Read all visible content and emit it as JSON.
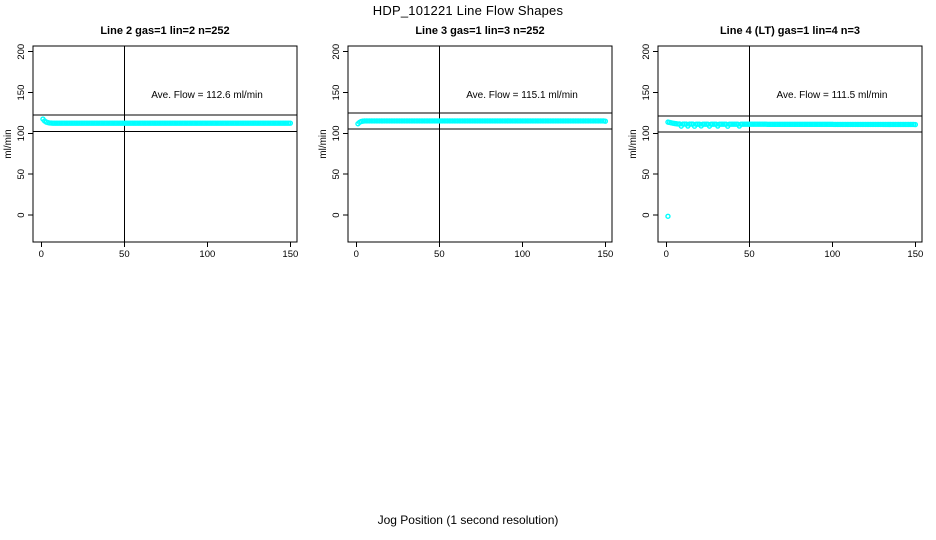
{
  "figure": {
    "suptitle": "HDP_101221  Line Flow Shapes",
    "shared_xlabel": "Jog Position (1 second resolution)",
    "background_color": "#FFFFFF",
    "axis_color": "#000000",
    "point_color": "#00FFFF"
  },
  "chart_data": [
    {
      "type": "scatter",
      "title": "Line 2 gas=1 lin=2 n=252",
      "annotation": "Ave. Flow =  112.6  ml/min",
      "ave_flow_ml_min": 112.6,
      "ylabel": "ml/min",
      "xlim": [
        -5,
        154
      ],
      "ylim": [
        -33,
        207
      ],
      "xticks": [
        0,
        50,
        100,
        150
      ],
      "yticks": [
        0,
        50,
        100,
        150,
        200
      ],
      "vline_x": 50,
      "hlines": [
        102.6,
        122.6
      ],
      "x_start": 1,
      "y_values": [
        117.5,
        115.2,
        113.9,
        113.2,
        112.8,
        112.6,
        112.5,
        112.5,
        112.5,
        112.5,
        112.5,
        112.5,
        112.5,
        112.5,
        112.5,
        112.5,
        112.5,
        112.5,
        112.5,
        112.5,
        112.5,
        112.5,
        112.5,
        112.5,
        112.5,
        112.5,
        112.5,
        112.5,
        112.5,
        112.5,
        112.5,
        112.5,
        112.5,
        112.5,
        112.5,
        112.5,
        112.5,
        112.5,
        112.5,
        112.5,
        112.5,
        112.5,
        112.5,
        112.5,
        112.5,
        112.5,
        112.5,
        112.5,
        112.5,
        112.5,
        112.5,
        112.5,
        112.5,
        112.5,
        112.5,
        112.5,
        112.5,
        112.5,
        112.5,
        112.5,
        112.5,
        112.5,
        112.5,
        112.5,
        112.5,
        112.5,
        112.5,
        112.5,
        112.5,
        112.5,
        112.5,
        112.5,
        112.5,
        112.5,
        112.5,
        112.5,
        112.5,
        112.5,
        112.5,
        112.5,
        112.5,
        112.5,
        112.5,
        112.5,
        112.5,
        112.5,
        112.5,
        112.5,
        112.5,
        112.5,
        112.5,
        112.5,
        112.5,
        112.5,
        112.5,
        112.5,
        112.5,
        112.5,
        112.5,
        112.5,
        112.5,
        112.5,
        112.5,
        112.5,
        112.5,
        112.5,
        112.5,
        112.5,
        112.5,
        112.5,
        112.5,
        112.5,
        112.5,
        112.5,
        112.5,
        112.5,
        112.5,
        112.5,
        112.5,
        112.5,
        112.5,
        112.5,
        112.5,
        112.5,
        112.5,
        112.5,
        112.5,
        112.5,
        112.5,
        112.5,
        112.5,
        112.5,
        112.5,
        112.5,
        112.5,
        112.5,
        112.5,
        112.5,
        112.5,
        112.5,
        112.5,
        112.5,
        112.5,
        112.5,
        112.5,
        112.5,
        112.5,
        112.5,
        112.5,
        112.5
      ],
      "extra_points": []
    },
    {
      "type": "scatter",
      "title": "Line 3 gas=1 lin=3 n=252",
      "annotation": "Ave. Flow =  115.1  ml/min",
      "ave_flow_ml_min": 115.1,
      "ylabel": "ml/min",
      "xlim": [
        -5,
        154
      ],
      "ylim": [
        -33,
        207
      ],
      "xticks": [
        0,
        50,
        100,
        150
      ],
      "yticks": [
        0,
        50,
        100,
        150,
        200
      ],
      "vline_x": 50,
      "hlines": [
        105.1,
        125.1
      ],
      "x_start": 1,
      "y_values": [
        111.8,
        113.6,
        114.6,
        115.0,
        115.2,
        115.3,
        115.3,
        115.3,
        115.3,
        115.3,
        115.3,
        115.3,
        115.3,
        115.3,
        115.3,
        115.3,
        115.3,
        115.3,
        115.3,
        115.3,
        115.3,
        115.3,
        115.3,
        115.3,
        115.3,
        115.3,
        115.3,
        115.3,
        115.3,
        115.3,
        115.3,
        115.3,
        115.3,
        115.3,
        115.3,
        115.3,
        115.3,
        115.3,
        115.3,
        115.3,
        115.3,
        115.3,
        115.3,
        115.3,
        115.3,
        115.3,
        115.3,
        115.3,
        115.3,
        115.3,
        115.3,
        115.3,
        115.3,
        115.3,
        115.3,
        115.3,
        115.3,
        115.3,
        115.3,
        115.3,
        115.3,
        115.3,
        115.3,
        115.3,
        115.3,
        115.3,
        115.3,
        115.3,
        115.3,
        115.3,
        115.3,
        115.3,
        115.3,
        115.3,
        115.3,
        115.3,
        115.3,
        115.3,
        115.3,
        115.3,
        115.3,
        115.3,
        115.3,
        115.3,
        115.3,
        115.3,
        115.3,
        115.3,
        115.3,
        115.3,
        115.3,
        115.3,
        115.3,
        115.3,
        115.3,
        115.3,
        115.3,
        115.3,
        115.3,
        115.3,
        115.3,
        115.3,
        115.3,
        115.3,
        115.3,
        115.3,
        115.3,
        115.3,
        115.3,
        115.3,
        115.3,
        115.3,
        115.3,
        115.3,
        115.3,
        115.3,
        115.3,
        115.3,
        115.3,
        115.3,
        115.3,
        115.3,
        115.3,
        115.3,
        115.3,
        115.3,
        115.3,
        115.3,
        115.3,
        115.3,
        115.3,
        115.3,
        115.3,
        115.3,
        115.3,
        115.3,
        115.3,
        115.3,
        115.3,
        115.3,
        115.3,
        115.3,
        115.3,
        115.3,
        115.3,
        115.3,
        115.3,
        115.3,
        115.3,
        114.9
      ],
      "extra_points": []
    },
    {
      "type": "scatter",
      "title": "Line 4 (LT) gas=1 lin=4 n=3",
      "annotation": "Ave. Flow =  111.5  ml/min",
      "ave_flow_ml_min": 111.5,
      "ylabel": "ml/min",
      "xlim": [
        -5,
        154
      ],
      "ylim": [
        -33,
        207
      ],
      "xticks": [
        0,
        50,
        100,
        150
      ],
      "yticks": [
        0,
        50,
        100,
        150,
        200
      ],
      "vline_x": 50,
      "hlines": [
        101.5,
        121.5
      ],
      "x_start": 1,
      "y_values": [
        113.8,
        113.4,
        112.9,
        112.5,
        112.1,
        111.8,
        111.6,
        111.5,
        108.9,
        111.4,
        111.4,
        111.4,
        109.0,
        111.4,
        111.4,
        111.4,
        108.8,
        111.3,
        111.3,
        111.3,
        109.1,
        111.3,
        111.3,
        111.3,
        111.3,
        108.9,
        111.3,
        111.3,
        111.3,
        111.3,
        109.0,
        111.2,
        111.2,
        111.2,
        111.2,
        111.2,
        108.8,
        111.2,
        111.2,
        111.2,
        111.2,
        111.2,
        111.2,
        109.0,
        111.2,
        111.2,
        111.2,
        111.2,
        111.2,
        111.2,
        111.2,
        111.2,
        111.2,
        111.2,
        111.2,
        111.2,
        111.2,
        111.2,
        111.2,
        111.2,
        111.1,
        111.1,
        111.1,
        111.1,
        111.1,
        111.1,
        111.1,
        111.1,
        111.1,
        111.1,
        111.1,
        111.1,
        111.1,
        111.1,
        111.1,
        111.1,
        111.1,
        111.1,
        111.1,
        111.1,
        111.1,
        111.1,
        111.1,
        111.1,
        111.1,
        111.1,
        111.1,
        111.1,
        111.1,
        111.1,
        111.1,
        111.1,
        111.1,
        111.1,
        111.1,
        111.1,
        111.1,
        111.1,
        111.1,
        111.1,
        111.0,
        111.0,
        111.0,
        111.0,
        111.0,
        111.0,
        111.0,
        111.0,
        111.0,
        111.0,
        111.0,
        111.0,
        111.0,
        111.0,
        111.0,
        111.0,
        111.0,
        111.0,
        111.0,
        111.0,
        111.0,
        111.0,
        111.0,
        111.0,
        111.0,
        111.0,
        111.0,
        111.0,
        111.0,
        111.0,
        110.9,
        110.9,
        110.9,
        110.9,
        110.9,
        110.9,
        110.9,
        110.9,
        110.9,
        110.9,
        110.9,
        110.9,
        110.9,
        110.9,
        110.9,
        110.9,
        110.9,
        110.9,
        110.9,
        110.8
      ],
      "extra_points": [
        [
          1,
          -1.5
        ]
      ]
    }
  ]
}
